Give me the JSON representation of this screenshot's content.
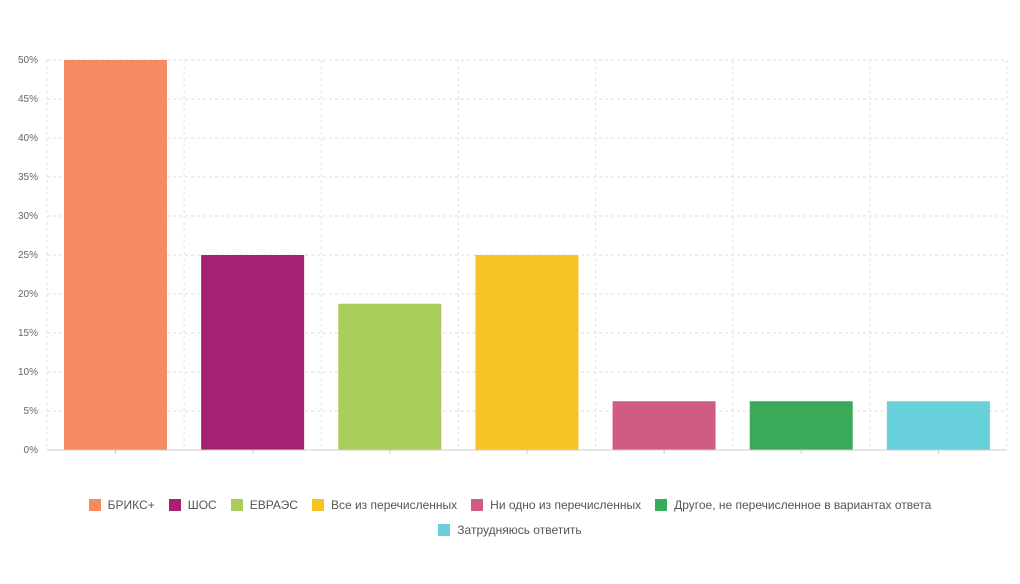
{
  "chart_data": {
    "type": "bar",
    "title": "",
    "xlabel": "",
    "ylabel": "",
    "categories": [
      "БРИКС+",
      "ШОС",
      "ЕВРАЭС",
      "Все из перечисленных",
      "Ни одно из перечисленных",
      "Другое, не перечисленное в вариантах ответа",
      "Затрудняюсь ответить"
    ],
    "values": [
      50,
      25,
      18.75,
      25,
      6.25,
      6.25,
      6.25
    ],
    "colors": [
      "#F58B62",
      "#A62173",
      "#A9CD5A",
      "#F8C425",
      "#D05C84",
      "#3BAA58",
      "#67D0DA"
    ],
    "ylim": [
      0,
      50
    ],
    "yticks": [
      0,
      5,
      10,
      15,
      20,
      25,
      30,
      35,
      40,
      45,
      50
    ],
    "ytick_labels": [
      "0%",
      "5%",
      "10%",
      "15%",
      "20%",
      "25%",
      "30%",
      "35%",
      "40%",
      "45%",
      "50%"
    ],
    "grid": true,
    "legend_position": "bottom"
  }
}
